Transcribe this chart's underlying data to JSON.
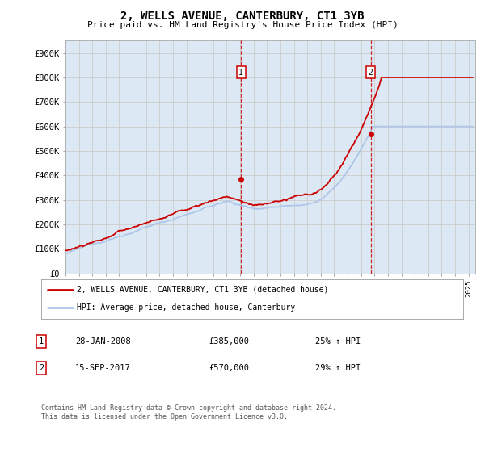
{
  "title": "2, WELLS AVENUE, CANTERBURY, CT1 3YB",
  "subtitle": "Price paid vs. HM Land Registry's House Price Index (HPI)",
  "ylabel_ticks": [
    "£0",
    "£100K",
    "£200K",
    "£300K",
    "£400K",
    "£500K",
    "£600K",
    "£700K",
    "£800K",
    "£900K"
  ],
  "ytick_values": [
    0,
    100000,
    200000,
    300000,
    400000,
    500000,
    600000,
    700000,
    800000,
    900000
  ],
  "ylim": [
    0,
    950000
  ],
  "xlim_start": 1995.0,
  "xlim_end": 2025.5,
  "hpi_line_color": "#aec6e8",
  "price_line_color": "#cc0000",
  "background_color": "#dce9f5",
  "plot_bg_color": "#ffffff",
  "grid_color": "#cccccc",
  "marker1_x": 2008.07,
  "marker1_y": 385000,
  "marker1_label": "1",
  "marker2_x": 2017.71,
  "marker2_y": 570000,
  "marker2_label": "2",
  "legend_line1": "2, WELLS AVENUE, CANTERBURY, CT1 3YB (detached house)",
  "legend_line2": "HPI: Average price, detached house, Canterbury",
  "annotation1_box": "1",
  "annotation1_date": "28-JAN-2008",
  "annotation1_price": "£385,000",
  "annotation1_hpi": "25% ↑ HPI",
  "annotation2_box": "2",
  "annotation2_date": "15-SEP-2017",
  "annotation2_price": "£570,000",
  "annotation2_hpi": "29% ↑ HPI",
  "footer": "Contains HM Land Registry data © Crown copyright and database right 2024.\nThis data is licensed under the Open Government Licence v3.0."
}
